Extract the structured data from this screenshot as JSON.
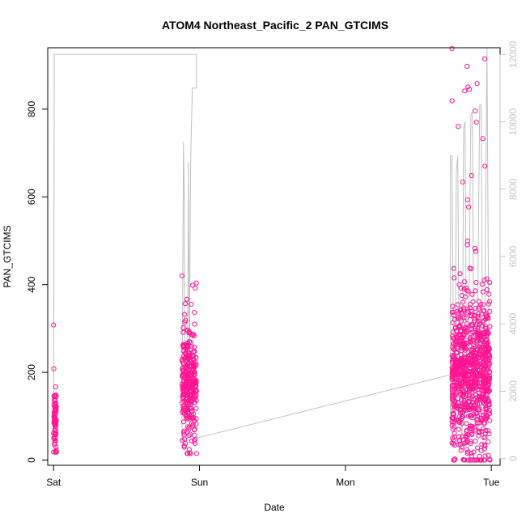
{
  "chart_data": {
    "type": "scatter",
    "title": "ATOM4 Northeast_Pacific_2 PAN_GTCIMS",
    "xlabel": "Date",
    "ylabel": "PAN_GTCIMS",
    "x_ticks": [
      {
        "label": "Sat",
        "value": 0
      },
      {
        "label": "Sun",
        "value": 1
      },
      {
        "label": "Mon",
        "value": 2
      },
      {
        "label": "Tue",
        "value": 3
      }
    ],
    "xlim": [
      -0.04,
      3.06
    ],
    "ylim": [
      -12,
      940
    ],
    "y_ticks": [
      0,
      200,
      400,
      600,
      800
    ],
    "secondary_axis": {
      "ylim": [
        -200,
        12200
      ],
      "ticks": [
        0,
        2000,
        4000,
        6000,
        8000,
        10000,
        12000
      ],
      "color": "#c4c4c4"
    },
    "grid": false,
    "point_color": "#ff1493",
    "line_color": "#c0c0c0",
    "groups": [
      {
        "x_start": 0.0,
        "x_end": 0.02,
        "y_min": 18,
        "y_max": 308,
        "center": 90,
        "spread": 38,
        "n": 70
      },
      {
        "x_start": 0.88,
        "x_end": 0.98,
        "y_min": 15,
        "y_max": 420,
        "center": 170,
        "spread": 60,
        "n": 320
      },
      {
        "x_start": 2.73,
        "x_end": 2.99,
        "y_min": 0,
        "y_max": 938,
        "center": 190,
        "spread": 90,
        "n": 900
      }
    ],
    "altitude_trace": [
      [
        0.0,
        700
      ],
      [
        0.005,
        12000
      ],
      [
        0.98,
        12000
      ],
      [
        0.98,
        11000
      ],
      [
        0.95,
        11000
      ],
      [
        0.95,
        10800
      ],
      [
        0.94,
        9000
      ],
      [
        0.935,
        6000
      ],
      [
        0.93,
        1000
      ],
      [
        0.925,
        8800
      ],
      [
        0.92,
        4500
      ],
      [
        0.915,
        3500
      ],
      [
        0.91,
        2000
      ],
      [
        0.9,
        1200
      ],
      [
        0.895,
        8000
      ],
      [
        0.89,
        9400
      ],
      [
        0.885,
        5000
      ],
      [
        0.88,
        500
      ],
      [
        2.73,
        2500
      ],
      [
        2.72,
        1000
      ],
      [
        2.72,
        9000
      ],
      [
        2.73,
        9000
      ],
      [
        2.74,
        3500
      ],
      [
        2.75,
        1500
      ],
      [
        2.76,
        8500
      ],
      [
        2.77,
        9000
      ],
      [
        2.78,
        2000
      ],
      [
        2.8,
        500
      ],
      [
        2.81,
        9800
      ],
      [
        2.82,
        10000
      ],
      [
        2.83,
        2500
      ],
      [
        2.84,
        1500
      ],
      [
        2.86,
        10200
      ],
      [
        2.87,
        10300
      ],
      [
        2.88,
        2000
      ],
      [
        2.9,
        1500
      ],
      [
        2.92,
        10500
      ],
      [
        2.93,
        10500
      ],
      [
        2.94,
        2800
      ],
      [
        2.95,
        1500
      ],
      [
        2.97,
        12200
      ],
      [
        2.98,
        5000
      ],
      [
        2.99,
        2200
      ]
    ]
  }
}
